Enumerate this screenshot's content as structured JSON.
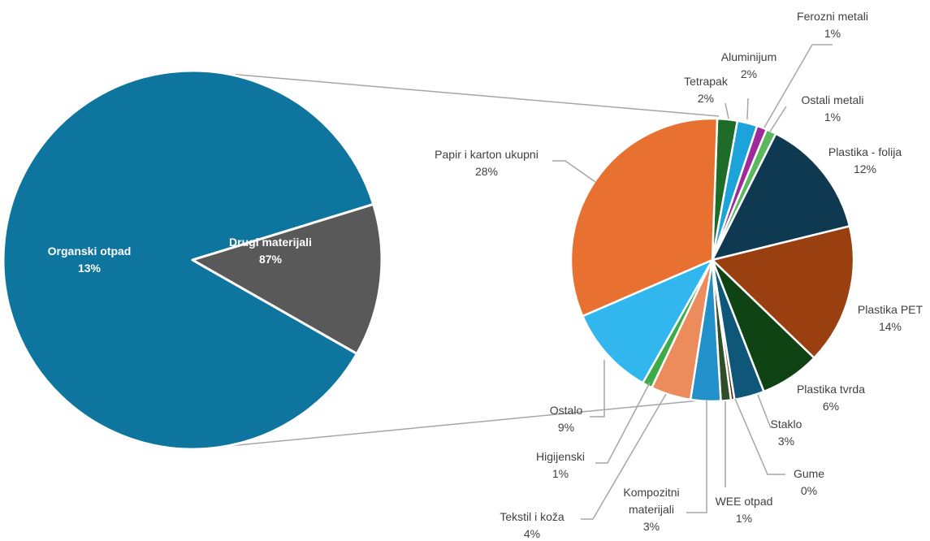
{
  "chart_data": {
    "type": "pie",
    "subtype": "pie-of-pie",
    "main_pie": {
      "slices": [
        {
          "label": "Drugi materijali",
          "value": 87,
          "value_label": "87%",
          "color": "#0e759e"
        },
        {
          "label": "Organski otpad",
          "value": 13,
          "value_label": "13%",
          "color": "#595959"
        }
      ]
    },
    "secondary_pie": {
      "source_slice": "Drugi materijali",
      "slices": [
        {
          "label": "Tetrapak",
          "value": 2,
          "value_label": "2%",
          "color": "#1e6b2a"
        },
        {
          "label": "Aluminijum",
          "value": 2,
          "value_label": "2%",
          "color": "#1ba3da"
        },
        {
          "label": "Ferozni metali",
          "value": 1,
          "value_label": "1%",
          "color": "#a0299c"
        },
        {
          "label": "Ostali metali",
          "value": 1,
          "value_label": "1%",
          "color": "#5cb85c"
        },
        {
          "label": "Plastika - folija",
          "value": 12,
          "value_label": "12%",
          "color": "#0e3950"
        },
        {
          "label": "Plastika PET",
          "value": 14,
          "value_label": "14%",
          "color": "#9a3f10"
        },
        {
          "label": "Plastika tvrda",
          "value": 6,
          "value_label": "6%",
          "color": "#0f4314"
        },
        {
          "label": "Staklo",
          "value": 3,
          "value_label": "3%",
          "color": "#0f5778"
        },
        {
          "label": "Gume",
          "value": 0,
          "value_label": "0%",
          "color": "#5e2a12"
        },
        {
          "label": "WEE otpad",
          "value": 1,
          "value_label": "1%",
          "color": "#2e4e2a"
        },
        {
          "label": "Kompozitni materijali",
          "value": 3,
          "value_label": "3%",
          "color": "#2290c9"
        },
        {
          "label": "Tekstil i koža",
          "value": 4,
          "value_label": "4%",
          "color": "#ec8b5b"
        },
        {
          "label": "Higijenski",
          "value": 1,
          "value_label": "1%",
          "color": "#3cab48"
        },
        {
          "label": "Ostalo",
          "value": 9,
          "value_label": "9%",
          "color": "#31b7ee"
        },
        {
          "label": "Papir i karton ukupni",
          "value": 28,
          "value_label": "28%",
          "color": "#e87030"
        }
      ]
    },
    "colors": {
      "connector": "#a6a6a6",
      "leader": "#a6a6a6",
      "inside_text": "#ffffff",
      "outside_text": "#404040"
    }
  }
}
